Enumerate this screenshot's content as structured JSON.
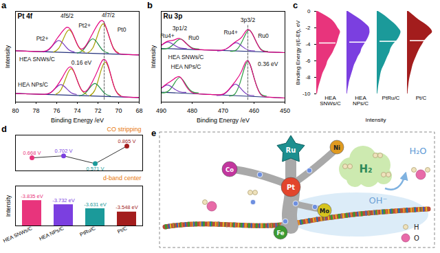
{
  "chart_data": [
    {
      "panel_label": "a",
      "type": "line",
      "title": "Pt 4f",
      "x_label": "Binding Energy /eV",
      "y_label": "Intensity",
      "xlim": [
        80,
        68
      ],
      "xticks": [
        80,
        78,
        76,
        74,
        72,
        70,
        68
      ],
      "ylim": [
        0,
        10
      ],
      "tick_labels": "x",
      "series": [
        {
          "color": "#22307a",
          "x": [
            68,
            80
          ],
          "values": [
            5.2,
            5.65
          ]
        },
        {
          "color": "#a8a000",
          "x": [
            70,
            70.5,
            71,
            71.5,
            72,
            72.5,
            73
          ],
          "values": [
            5.41,
            5.96,
            7.51,
            8.63,
            7.51,
            5.96,
            5.41
          ]
        },
        {
          "color": "#1e8c45",
          "x": [
            71,
            71.5,
            72,
            72.5,
            73,
            73.5,
            74
          ],
          "values": [
            5.41,
            5.67,
            6.43,
            6.97,
            6.43,
            5.67,
            5.41
          ]
        },
        {
          "color": "#a8a000",
          "x": [
            73.3,
            73.8,
            74.3,
            74.8,
            75.3,
            75.8,
            76.3
          ],
          "values": [
            5.52,
            5.94,
            7.11,
            7.96,
            7.11,
            5.94,
            5.52
          ]
        },
        {
          "color": "#7b3cc0",
          "x": [
            74.3,
            74.8,
            75.3,
            75.8,
            76.3,
            76.8,
            77.3
          ],
          "values": [
            5.52,
            5.74,
            6.35,
            6.79,
            6.35,
            5.74,
            5.52
          ]
        },
        {
          "color": "#e4007f",
          "x": [
            68,
            68.5,
            69,
            69.5,
            70,
            70.5,
            71,
            71.5,
            72,
            72.5,
            73,
            73.5,
            74,
            74.5,
            75,
            75.5,
            76,
            76.5,
            77,
            77.5,
            78,
            78.5,
            79,
            79.5,
            80
          ],
          "values": [
            5.2,
            5.22,
            5.24,
            5.26,
            5.36,
            5.92,
            7.53,
            8.93,
            8.59,
            7.6,
            6.54,
            5.86,
            6.35,
            7.69,
            8.25,
            7.71,
            6.95,
            6.12,
            5.66,
            5.57,
            5.58,
            5.59,
            5.61,
            5.63,
            5.65
          ]
        },
        {
          "color": "#22307a",
          "x": [
            68,
            80
          ],
          "values": [
            0.5,
            0.95
          ]
        },
        {
          "color": "#a8a000",
          "x": [
            69.8,
            70.3,
            70.8,
            71.3,
            71.8,
            72.3,
            72.8
          ],
          "values": [
            0.69,
            1.32,
            3.11,
            4.4,
            3.11,
            1.32,
            0.69
          ]
        },
        {
          "color": "#1e8c45",
          "x": [
            70.8,
            71.3,
            71.8,
            72.3,
            72.8,
            73.3,
            73.8
          ],
          "values": [
            0.68,
            0.92,
            1.57,
            2.05,
            1.57,
            0.92,
            0.68
          ]
        },
        {
          "color": "#a8a000",
          "x": [
            73.1,
            73.6,
            74.1,
            74.6,
            75.1,
            75.6,
            76.1
          ],
          "values": [
            0.85,
            1.33,
            2.69,
            3.68,
            2.69,
            1.33,
            0.85
          ]
        },
        {
          "color": "#7b3cc0",
          "x": [
            74.1,
            74.6,
            75.1,
            75.6,
            76.1,
            76.6,
            77.1
          ],
          "values": [
            0.85,
            1.03,
            1.55,
            1.92,
            1.55,
            1.03,
            0.85
          ]
        },
        {
          "color": "#e4007f",
          "x": [
            68,
            68.5,
            69,
            69.5,
            70,
            70.5,
            71,
            71.5,
            72,
            72.5,
            73,
            73.5,
            74,
            74.5,
            75,
            75.5,
            76,
            76.5,
            77,
            77.5,
            78,
            78.5,
            79,
            79.5,
            80
          ],
          "values": [
            0.5,
            0.52,
            0.54,
            0.58,
            0.81,
            1.92,
            3.98,
            4.68,
            3.55,
            2.33,
            1.38,
            1.23,
            2.36,
            3.75,
            3.6,
            2.62,
            1.75,
            1.12,
            0.88,
            0.86,
            0.875,
            0.89,
            0.91,
            0.93,
            0.95
          ]
        },
        {
          "color": "#555555",
          "line_style": "dashed",
          "x": [
            71.4,
            71.4
          ],
          "values": [
            0.3,
            9.0
          ]
        }
      ],
      "annotations": [
        {
          "text": "4f5/2",
          "x": 75.0,
          "y": 9.5
        },
        {
          "text": "4f7/2",
          "x": 71.0,
          "y": 9.6
        },
        {
          "text": "Pt2+",
          "x": 77.4,
          "y": 7.0
        },
        {
          "text": "Pt2+",
          "x": 73.3,
          "y": 8.4
        },
        {
          "text": "Pt0",
          "x": 69.7,
          "y": 8.0
        },
        {
          "text": "HEA SNWs/C",
          "x": 77.9,
          "y": 4.7
        },
        {
          "text": "HEA NPs/C",
          "x": 78.3,
          "y": 1.9
        },
        {
          "text": "0.16 eV",
          "x": 73.6,
          "y": 4.3
        }
      ]
    },
    {
      "panel_label": "b",
      "type": "line",
      "title": "Ru 3p",
      "x_label": "Binding Energy /eV",
      "y_label": "Intensity",
      "xlim": [
        490,
        450
      ],
      "xticks": [
        490,
        480,
        470,
        460,
        450
      ],
      "ylim": [
        0,
        11
      ],
      "tick_labels": "x",
      "series": [
        {
          "color": "#22307a",
          "x": [
            450,
            490
          ],
          "values": [
            6.0,
            6.5
          ]
        },
        {
          "color": "#2e9a45",
          "x": [
            455.6,
            457.6,
            459.6,
            461.6,
            463.6,
            465.6,
            467.6
          ],
          "values": [
            6.15,
            6.36,
            7.54,
            8.74,
            7.54,
            6.36,
            6.15
          ]
        },
        {
          "color": "#7b3cc0",
          "x": [
            459.8,
            461.8,
            463.8,
            465.8,
            467.8,
            469.8,
            471.8
          ],
          "values": [
            6.2,
            6.29,
            6.74,
            7.2,
            6.74,
            6.29,
            6.2
          ]
        },
        {
          "color": "#2e9a45",
          "x": [
            477.8,
            479.8,
            481.8,
            483.8,
            485.8,
            487.8,
            489.8
          ],
          "values": [
            6.43,
            6.53,
            7.08,
            7.63,
            7.08,
            6.53,
            6.43
          ]
        },
        {
          "color": "#7b3cc0",
          "x": [
            481.8,
            483.8,
            485.8,
            487.8,
            489.8
          ],
          "values": [
            6.48,
            6.55,
            6.91,
            7.28,
            6.91
          ]
        },
        {
          "color": "#e4007f",
          "x": [
            450,
            452,
            454,
            456,
            458,
            460,
            462,
            464,
            466,
            468,
            470,
            472,
            474,
            476,
            478,
            480,
            482,
            484,
            486,
            488,
            490
          ],
          "values": [
            6.0,
            6.03,
            6.05,
            6.1,
            6.45,
            7.88,
            8.8,
            7.86,
            7.32,
            6.7,
            6.32,
            6.28,
            6.3,
            6.33,
            6.36,
            6.51,
            7.13,
            7.71,
            7.51,
            7.36,
            6.88
          ]
        },
        {
          "color": "#22307a",
          "x": [
            450,
            490
          ],
          "values": [
            0.5,
            1.2
          ]
        },
        {
          "color": "#2e9a45",
          "x": [
            456,
            458,
            460,
            462,
            464,
            466,
            468
          ],
          "values": [
            0.73,
            1.07,
            2.97,
            4.91,
            2.97,
            1.07,
            0.73
          ]
        },
        {
          "color": "#7b3cc0",
          "x": [
            460,
            462,
            464,
            466,
            468,
            470,
            472
          ],
          "values": [
            0.79,
            0.9,
            1.53,
            2.18,
            1.53,
            0.9,
            0.79
          ]
        },
        {
          "color": "#2e9a45",
          "x": [
            478,
            480,
            482,
            484,
            486,
            488,
            490
          ],
          "values": [
            1.11,
            1.26,
            2.12,
            3.0,
            2.12,
            1.26,
            1.11
          ]
        },
        {
          "color": "#7b3cc0",
          "x": [
            482,
            484,
            486,
            488,
            490
          ],
          "values": [
            1.17,
            1.25,
            1.66,
            2.07,
            1.66
          ]
        },
        {
          "color": "#e4007f",
          "x": [
            450,
            452,
            454,
            456,
            458,
            460,
            462,
            464,
            466,
            468,
            470,
            472,
            474,
            476,
            478,
            480,
            482,
            484,
            486,
            488,
            490
          ],
          "values": [
            0.5,
            0.535,
            0.57,
            0.62,
            1.0,
            2.95,
            5.03,
            3.76,
            2.54,
            1.59,
            0.97,
            0.89,
            0.92,
            0.955,
            1.0,
            1.15,
            1.96,
            3.06,
            2.77,
            2.27,
            1.7
          ]
        },
        {
          "color": "#555555",
          "line_style": "dashed",
          "x": [
            462,
            462
          ],
          "values": [
            0.3,
            9.3
          ]
        }
      ],
      "annotations": [
        {
          "text": "3p1/2",
          "x": 484,
          "y": 8.9
        },
        {
          "text": "3p3/2",
          "x": 462,
          "y": 9.9
        },
        {
          "text": "Ru4+",
          "x": 488,
          "y": 8.0
        },
        {
          "text": "Ru0",
          "x": 479.5,
          "y": 7.8
        },
        {
          "text": "Ru4+",
          "x": 467.5,
          "y": 8.4
        },
        {
          "text": "Ru0",
          "x": 457,
          "y": 8.0
        },
        {
          "text": "HEA SNWs/C",
          "x": 482,
          "y": 5.4
        },
        {
          "text": "HEA NPs/C",
          "x": 482,
          "y": 4.3
        },
        {
          "text": "0.36 eV",
          "x": 455.5,
          "y": 4.6
        }
      ]
    },
    {
      "panel_label": "c",
      "type": "area",
      "orientation": "horizontal",
      "x_label": "Intensity",
      "y_label": "Binding Energy /(E-Ef), eV",
      "categories": [
        "HEA SNWs/C",
        "HEA NPs/C",
        "PtRu/C",
        "Pt/C"
      ],
      "y": [
        0,
        -0.5,
        -1,
        -1.5,
        -2,
        -2.5,
        -3,
        -3.5,
        -4,
        -4.5,
        -5,
        -5.5,
        -6,
        -6.5,
        -7,
        -7.5,
        -8,
        -8.5,
        -9,
        -9.5,
        -10
      ],
      "values": [
        [
          0.05,
          0.35,
          0.6,
          0.75,
          0.85,
          0.95,
          0.9,
          0.85,
          0.8,
          0.72,
          0.65,
          0.55,
          0.45,
          0.4,
          0.33,
          0.25,
          0.2,
          0.15,
          0.1,
          0.06,
          0.03
        ],
        [
          0.05,
          0.3,
          0.55,
          0.75,
          0.9,
          0.92,
          0.88,
          0.8,
          0.7,
          0.6,
          0.55,
          0.45,
          0.38,
          0.3,
          0.25,
          0.2,
          0.15,
          0.1,
          0.07,
          0.04,
          0.02
        ],
        [
          0.05,
          0.3,
          0.5,
          0.7,
          0.85,
          0.95,
          0.9,
          0.8,
          0.65,
          0.55,
          0.5,
          0.42,
          0.35,
          0.28,
          0.2,
          0.15,
          0.12,
          0.09,
          0.06,
          0.04,
          0.02
        ],
        [
          0.05,
          0.25,
          0.45,
          0.7,
          0.9,
          1.0,
          0.85,
          0.7,
          0.6,
          0.5,
          0.42,
          0.35,
          0.28,
          0.22,
          0.18,
          0.14,
          0.1,
          0.07,
          0.05,
          0.03,
          0.02
        ]
      ],
      "colors": [
        "#e8347c",
        "#7b3fe0",
        "#1b9a9a",
        "#a31d1d"
      ],
      "d_band_center": [
        -3.835,
        -3.732,
        -3.631,
        -3.548
      ],
      "xlim": [
        0,
        1.1
      ],
      "ylim": [
        -10,
        0
      ],
      "yticks": [
        0,
        -2,
        -4,
        -6,
        -8,
        -10
      ]
    },
    {
      "panel_label": "d",
      "type": "line",
      "title": "CO stripping",
      "categories": [
        "HEA SNWs/C",
        "HEA NPs/C",
        "PtRu/C",
        "Pt/C"
      ],
      "values": [
        0.668,
        0.702,
        0.571,
        0.865
      ],
      "value_labels": [
        "0.668 V",
        "0.702 V",
        "0.571 V",
        "0.865 V"
      ],
      "colors": [
        "#e8347c",
        "#7b3fe0",
        "#1b9a9a",
        "#a31d1d"
      ],
      "color": "#333333",
      "marker": "circle",
      "ylim": [
        0.45,
        1.05
      ],
      "tick_labels": false,
      "data_labels": true
    },
    {
      "type": "bar",
      "title": "d-band center",
      "y_label": "Intensity",
      "categories": [
        "HEA SNWs/C",
        "HEA NPs/C",
        "PtRu/C",
        "Pt/C"
      ],
      "values": [
        -3.835,
        -3.732,
        -3.631,
        -3.548
      ],
      "value_labels": [
        "-3.835 eV",
        "-3.732 eV",
        "-3.631 eV",
        "-3.548 eV"
      ],
      "colors": [
        "#e8347c",
        "#7b3fe0",
        "#1b9a9a",
        "#a31d1d"
      ],
      "ylim": [
        -3.2,
        -4.2
      ],
      "tick_labels": "x",
      "data_labels": true
    }
  ],
  "diagram": {
    "panel_label": "e",
    "elements": [
      "Ru",
      "Ni",
      "Co",
      "Pt",
      "Fe",
      "Mo"
    ],
    "reactant": "H₂",
    "product": "H₂O",
    "electrolyte": "OH⁻",
    "legend": [
      "H",
      "O"
    ]
  }
}
